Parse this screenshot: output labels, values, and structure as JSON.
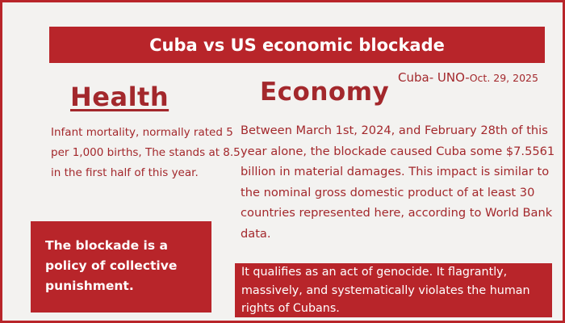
{
  "header": {
    "title": "Cuba vs US economic blockade"
  },
  "source": {
    "org": "Cuba- UNO-",
    "date": "Oct. 29, 2025"
  },
  "health": {
    "heading": "Health",
    "text": "Infant mortality, normally rated 5 per 1,000 births, The stands at 8.5 in the first half of this year."
  },
  "economy": {
    "heading": "Economy",
    "text": "Between March 1st, 2024, and February 28th of this year alone, the blockade caused Cuba some $7.5561 billion in material damages. This impact is similar to the nominal gross domestic product of at least 30 countries represented here, according to World Bank data."
  },
  "callouts": {
    "punishment": "The blockade is a policy of collective punishment.",
    "genocide": "It qualifies as an act of genocide. It flagrantly, massively, and systematically violates the human rights of Cubans."
  },
  "colors": {
    "accent": "#b8252a",
    "text": "#a3282c",
    "background": "#f3f2f0"
  }
}
